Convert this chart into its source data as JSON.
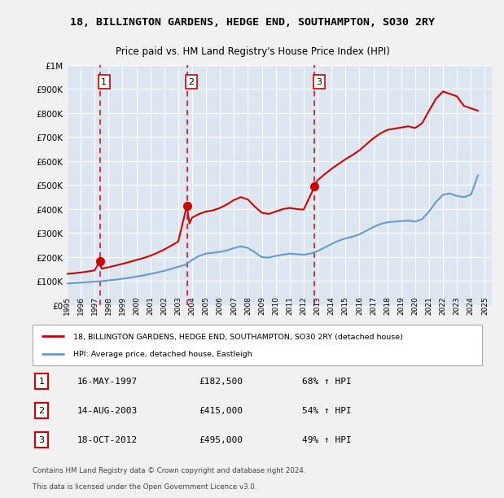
{
  "title1": "18, BILLINGTON GARDENS, HEDGE END, SOUTHAMPTON, SO30 2RY",
  "title2": "Price paid vs. HM Land Registry's House Price Index (HPI)",
  "legend_line1": "18, BILLINGTON GARDENS, HEDGE END, SOUTHAMPTON, SO30 2RY (detached house)",
  "legend_line2": "HPI: Average price, detached house, Eastleigh",
  "footer1": "Contains HM Land Registry data © Crown copyright and database right 2024.",
  "footer2": "This data is licensed under the Open Government Licence v3.0.",
  "transactions": [
    {
      "num": 1,
      "date": "16-MAY-1997",
      "price": 182500,
      "pct": "68%",
      "dir": "↑"
    },
    {
      "num": 2,
      "date": "14-AUG-2003",
      "price": 415000,
      "pct": "54%",
      "dir": "↑"
    },
    {
      "num": 3,
      "date": "18-OCT-2012",
      "price": 495000,
      "pct": "49%",
      "dir": "↑"
    }
  ],
  "sale_dates": [
    1997.37,
    2003.62,
    2012.79
  ],
  "sale_prices": [
    182500,
    415000,
    495000
  ],
  "red_color": "#cc0000",
  "blue_color": "#6699cc",
  "dashed_color": "#cc0000",
  "background_color": "#e8eef4",
  "plot_bg": "#dce6f0",
  "grid_color": "#ffffff",
  "ylim": [
    0,
    1000000
  ],
  "xlim_start": 1995.0,
  "xlim_end": 2025.5,
  "hpi_x": [
    1995,
    1995.5,
    1996,
    1996.5,
    1997,
    1997.5,
    1998,
    1998.5,
    1999,
    1999.5,
    2000,
    2000.5,
    2001,
    2001.5,
    2002,
    2002.5,
    2003,
    2003.5,
    2004,
    2004.5,
    2005,
    2005.5,
    2006,
    2006.5,
    2007,
    2007.5,
    2008,
    2008.5,
    2009,
    2009.5,
    2010,
    2010.5,
    2011,
    2011.5,
    2012,
    2012.5,
    2013,
    2013.5,
    2014,
    2014.5,
    2015,
    2015.5,
    2016,
    2016.5,
    2017,
    2017.5,
    2018,
    2018.5,
    2019,
    2019.5,
    2020,
    2020.5,
    2021,
    2021.5,
    2022,
    2022.5,
    2023,
    2023.5,
    2024,
    2024.5
  ],
  "hpi_y": [
    90000,
    92000,
    94000,
    96000,
    98000,
    100000,
    103000,
    106000,
    110000,
    114000,
    119000,
    124000,
    130000,
    136000,
    143000,
    151000,
    160000,
    168000,
    188000,
    205000,
    215000,
    218000,
    222000,
    228000,
    238000,
    245000,
    238000,
    220000,
    200000,
    198000,
    205000,
    210000,
    215000,
    212000,
    210000,
    215000,
    225000,
    240000,
    255000,
    268000,
    278000,
    285000,
    295000,
    310000,
    325000,
    338000,
    345000,
    348000,
    350000,
    352000,
    348000,
    358000,
    390000,
    430000,
    460000,
    465000,
    455000,
    450000,
    460000,
    540000
  ],
  "red_x": [
    1995,
    1995.5,
    1996,
    1996.5,
    1997,
    1997.37,
    1997.5,
    1998,
    1998.5,
    1999,
    1999.5,
    2000,
    2000.5,
    2001,
    2001.5,
    2002,
    2002.5,
    2003,
    2003.62,
    2003.8,
    2004,
    2004.5,
    2005,
    2005.5,
    2006,
    2006.5,
    2007,
    2007.5,
    2008,
    2008.5,
    2009,
    2009.5,
    2010,
    2010.5,
    2011,
    2011.5,
    2012,
    2012.79,
    2013,
    2013.5,
    2014,
    2014.5,
    2015,
    2015.5,
    2016,
    2016.5,
    2017,
    2017.5,
    2018,
    2018.5,
    2019,
    2019.5,
    2020,
    2020.5,
    2021,
    2021.5,
    2022,
    2022.5,
    2023,
    2023.5,
    2024,
    2024.5
  ],
  "red_y": [
    130000,
    133000,
    136000,
    140000,
    145000,
    182500,
    152000,
    158000,
    165000,
    172000,
    180000,
    188000,
    196000,
    206000,
    218000,
    232000,
    248000,
    265000,
    415000,
    340000,
    365000,
    380000,
    390000,
    395000,
    405000,
    420000,
    438000,
    450000,
    440000,
    410000,
    385000,
    380000,
    390000,
    400000,
    405000,
    400000,
    398000,
    495000,
    520000,
    545000,
    568000,
    588000,
    608000,
    625000,
    645000,
    670000,
    695000,
    715000,
    730000,
    735000,
    740000,
    745000,
    738000,
    758000,
    810000,
    860000,
    890000,
    880000,
    870000,
    830000,
    820000,
    810000
  ]
}
